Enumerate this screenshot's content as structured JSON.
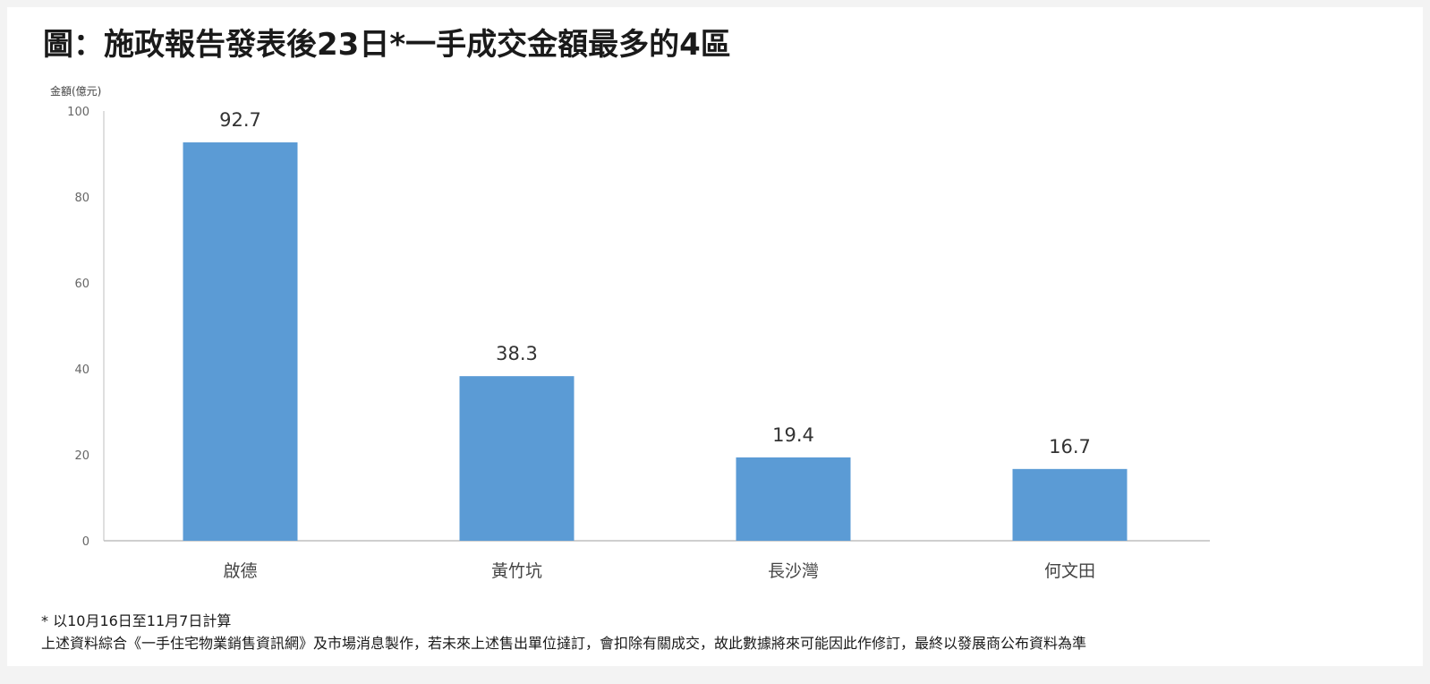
{
  "chart_data": {
    "type": "bar",
    "title": "圖：施政報告發表後23日*一手成交金額最多的4區",
    "ylabel": "金額(億元)",
    "xlabel": "",
    "categories": [
      "啟德",
      "黃竹坑",
      "長沙灣",
      "何文田"
    ],
    "values": [
      92.7,
      38.3,
      19.4,
      16.7
    ],
    "value_labels": [
      "92.7",
      "38.3",
      "19.4",
      "16.7"
    ],
    "yticks": [
      0,
      20,
      40,
      60,
      80,
      100
    ],
    "ylim": [
      0,
      100
    ],
    "grid": false,
    "legend": "none",
    "bar_color": "#5b9bd5"
  },
  "footnotes": {
    "line1": "* 以10月16日至11月7日計算",
    "line2": "上述資料綜合《一手住宅物業銷售資訊網》及市場消息製作，若未來上述售出單位撻訂，會扣除有關成交，故此數據將來可能因此作修訂，最終以發展商公布資料為準"
  }
}
